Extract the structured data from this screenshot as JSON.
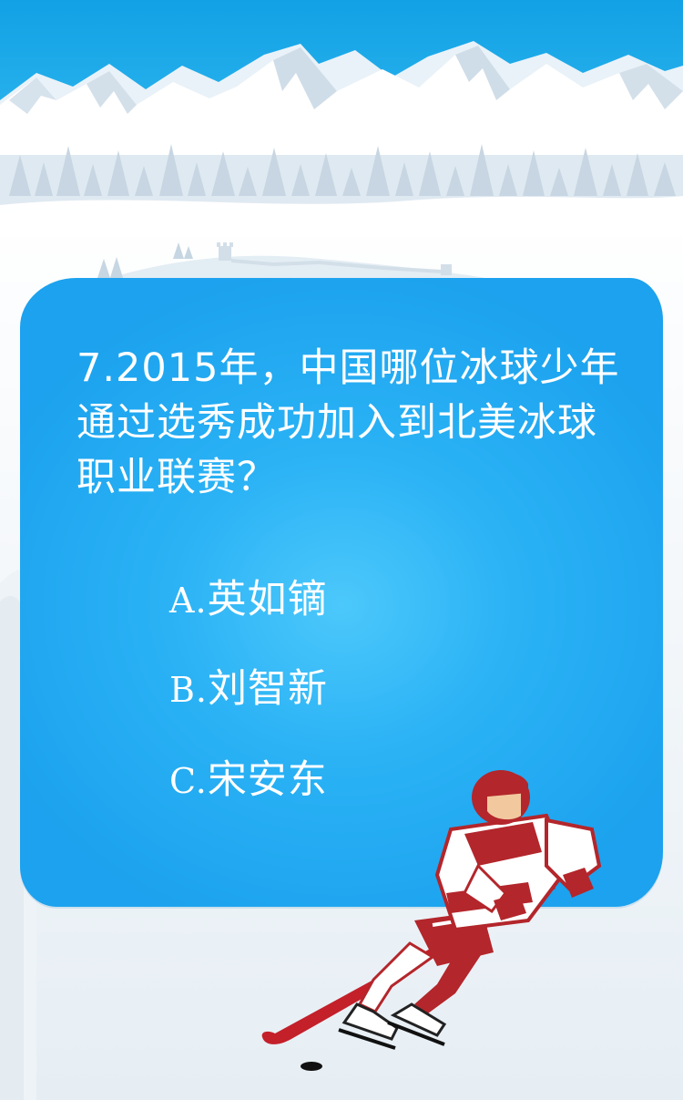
{
  "question": {
    "number": "7.",
    "text": "2015年，中国哪位冰球少年通过选秀成功加入到北美冰球职业联赛？"
  },
  "options": [
    {
      "letter": "A.",
      "text": "英如镝"
    },
    {
      "letter": "B.",
      "text": "刘智新"
    },
    {
      "letter": "C.",
      "text": "宋安东"
    }
  ],
  "colors": {
    "sky": "#1aa7e8",
    "card": "#2ab2f5",
    "jersey_red": "#b3262b",
    "stick_red": "#c3202a"
  },
  "icons": [
    "mountain-range",
    "pine-forest",
    "great-wall",
    "ice-hockey-player"
  ]
}
